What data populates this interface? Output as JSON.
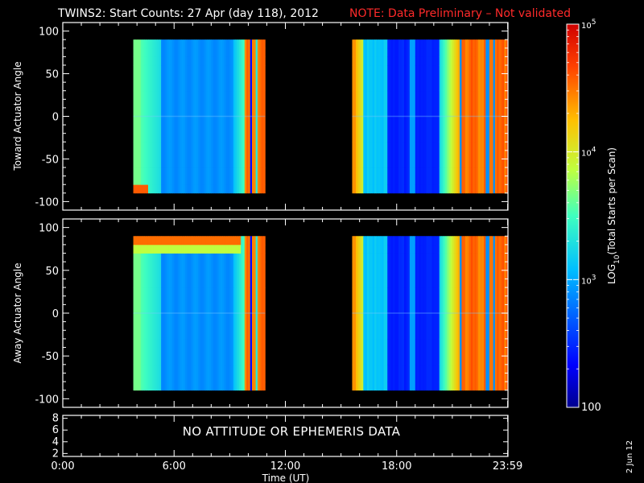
{
  "chart_data": [
    {
      "type": "heatmap",
      "title": "TWINS2: Start Counts: 27 Apr (day 118), 2012",
      "note": "NOTE: Data Preliminary – Not validated",
      "ylabel": "Toward Actuator Angle",
      "ylim": [
        -110,
        110
      ],
      "yticks": [
        100,
        50,
        0,
        -50,
        -100
      ],
      "xlim": [
        0,
        24
      ],
      "data_coverage_hours": [
        [
          3.8,
          10.9
        ],
        [
          15.6,
          23.95
        ]
      ],
      "angle_range": [
        -90,
        90
      ],
      "color_scale": "log",
      "grid": false
    },
    {
      "type": "heatmap",
      "ylabel": "Away Actuator Angle",
      "ylim": [
        -110,
        110
      ],
      "yticks": [
        100,
        50,
        0,
        -50,
        -100
      ],
      "xlim": [
        0,
        24
      ],
      "data_coverage_hours": [
        [
          3.8,
          10.9
        ],
        [
          15.6,
          23.95
        ]
      ],
      "angle_range": [
        -90,
        90
      ],
      "color_scale": "log",
      "grid": false
    },
    {
      "type": "line",
      "yticks": [
        8,
        6,
        4,
        2
      ],
      "ylim": [
        1.5,
        8.5
      ],
      "message": "NO ATTITUDE OR EPHEMERIS DATA",
      "xlim": [
        0,
        24
      ],
      "xticks": [
        "0:00",
        "6:00",
        "12:00",
        "18:00",
        "23:59"
      ],
      "xtick_hours": [
        0,
        6,
        12,
        18,
        23.983
      ],
      "xlabel": "Time (UT)"
    }
  ],
  "colorbar": {
    "label": "LOG10(Total Starts per Scan)",
    "label_main": "LOG",
    "label_sub": "10",
    "label_rest": "(Total Starts per Scan)",
    "scale": "log",
    "range": [
      100,
      100000
    ],
    "ticks": [
      {
        "value": 100,
        "label": "100",
        "base": "",
        "exp": ""
      },
      {
        "value": 1000,
        "label": "",
        "base": "10",
        "exp": "3"
      },
      {
        "value": 10000,
        "label": "",
        "base": "10",
        "exp": "4"
      },
      {
        "value": 100000,
        "label": "",
        "base": "10",
        "exp": "5"
      }
    ]
  },
  "date_label": "2 Jun 12",
  "colors": {
    "background": "#000000",
    "axes": "#ffffff",
    "note": "#ff2a2a",
    "low": "#000080",
    "high": "#ff0000"
  }
}
